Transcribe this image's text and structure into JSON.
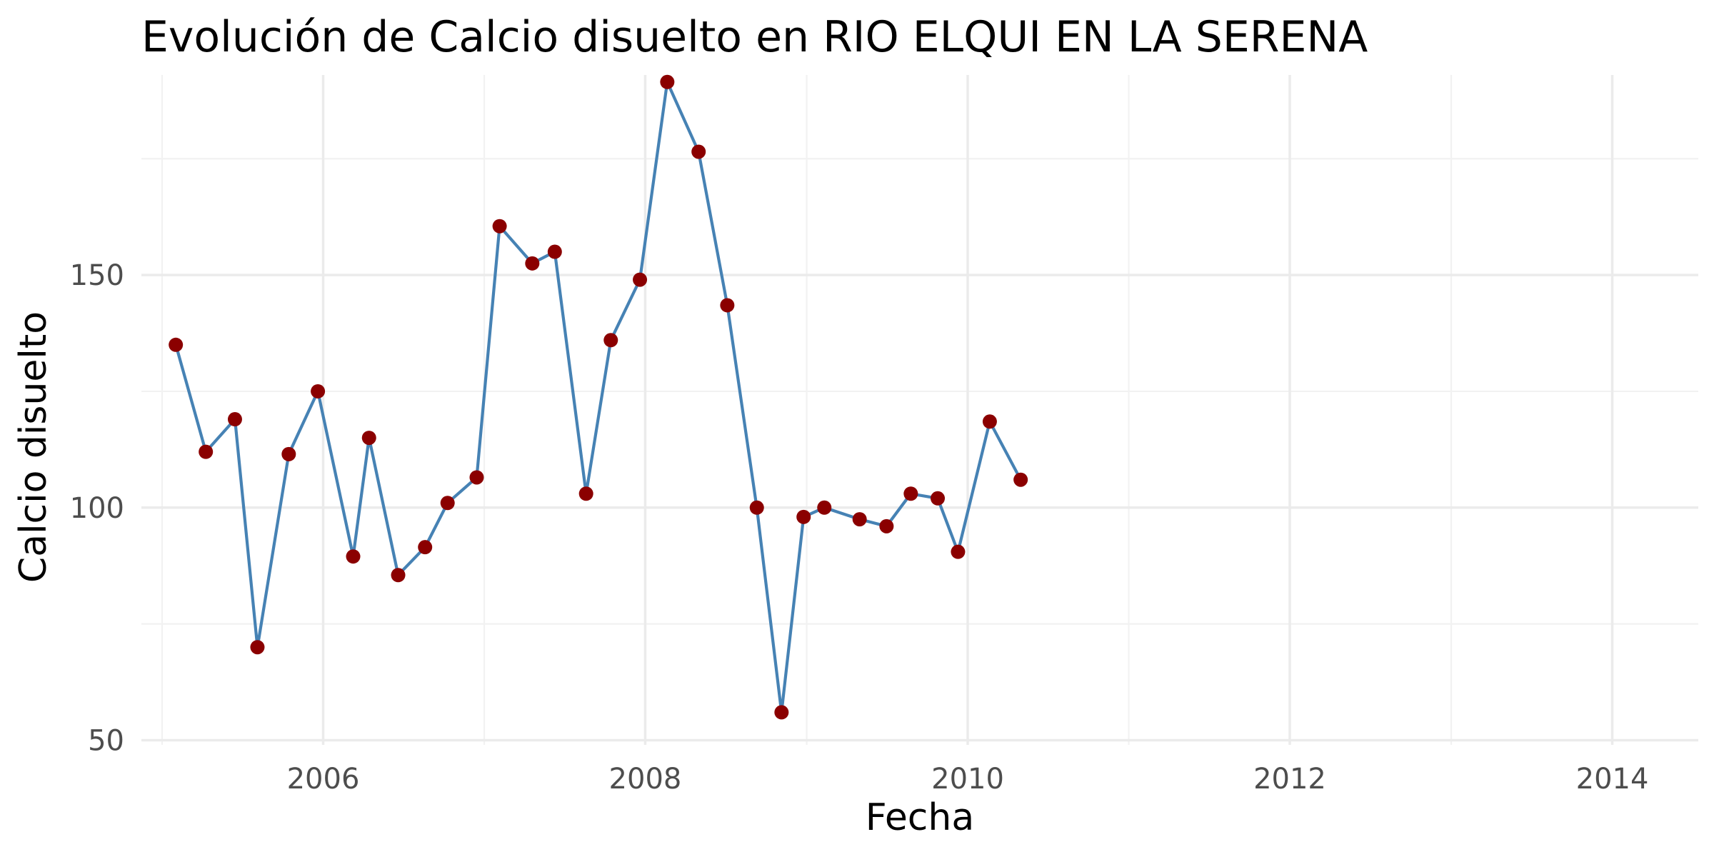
{
  "chart_data": {
    "type": "line",
    "title": "Evolución de Calcio disuelto en RIO ELQUI EN LA SERENA",
    "xlabel": "Fecha",
    "ylabel": "Calcio disuelto",
    "x_axis": "date",
    "xlim": [
      "2004-11-15",
      "2014-07-15"
    ],
    "ylim": [
      49,
      193
    ],
    "x_ticks": [
      {
        "value": "2006-01-01",
        "label": "2006"
      },
      {
        "value": "2008-01-01",
        "label": "2008"
      },
      {
        "value": "2010-01-01",
        "label": "2010"
      },
      {
        "value": "2012-01-01",
        "label": "2012"
      },
      {
        "value": "2014-01-01",
        "label": "2014"
      }
    ],
    "x_minor_ticks": [
      "2005-01-01",
      "2007-01-01",
      "2009-01-01",
      "2011-01-01",
      "2013-01-01"
    ],
    "y_ticks": [
      50,
      100,
      150
    ],
    "y_minor_ticks": [
      75,
      125,
      175
    ],
    "grid": true,
    "line_color": "#4682b4",
    "point_color": "#8b0000",
    "series": [
      {
        "x": [
          "2005-02-01",
          "2005-04-10",
          "2005-06-15",
          "2005-08-05",
          "2005-10-15",
          "2005-12-20",
          "2006-03-10",
          "2006-04-15",
          "2006-06-20",
          "2006-08-20",
          "2006-10-10",
          "2006-12-15",
          "2007-02-05",
          "2007-04-20",
          "2007-06-10",
          "2007-08-20",
          "2007-10-15",
          "2007-12-20",
          "2008-02-20",
          "2008-05-01",
          "2008-07-05",
          "2008-09-10",
          "2008-11-05",
          "2008-12-25",
          "2009-02-10",
          "2009-05-01",
          "2009-07-01",
          "2009-08-25",
          "2009-10-25",
          "2009-12-10",
          "2010-02-20",
          "2010-05-01"
        ],
        "y": [
          135,
          112,
          119,
          70,
          111.5,
          125,
          89.5,
          115,
          85.5,
          91.5,
          101,
          106.5,
          160.5,
          152.5,
          155,
          103,
          136,
          149,
          191.5,
          176.5,
          143.5,
          100,
          56,
          98,
          100,
          97.5,
          96,
          103,
          102,
          90.5,
          118.5,
          106
        ]
      }
    ]
  }
}
